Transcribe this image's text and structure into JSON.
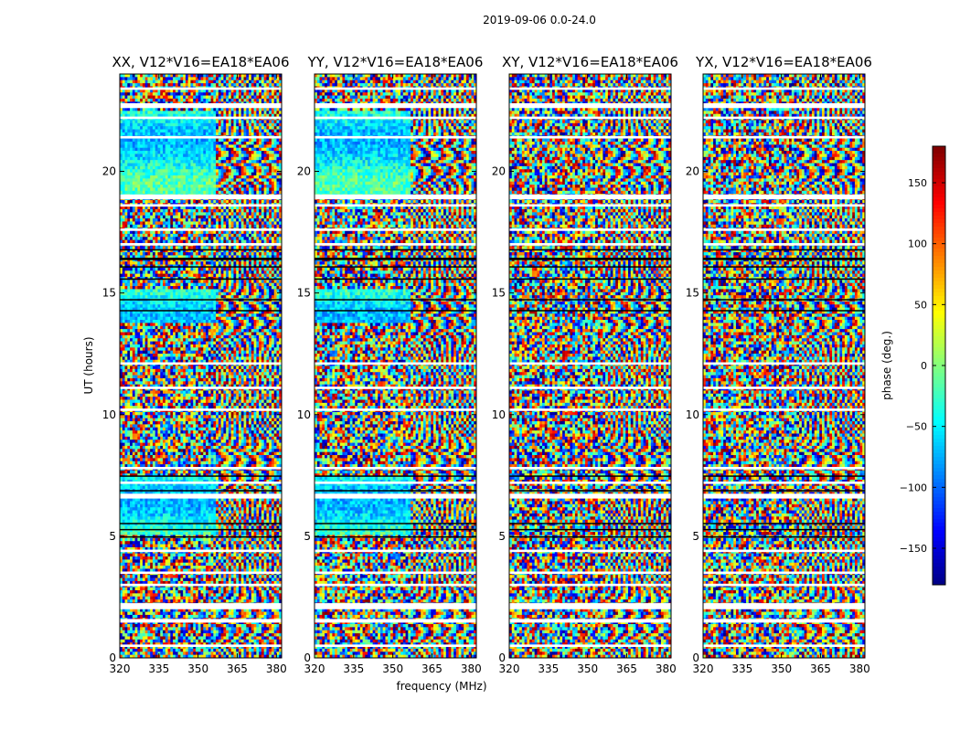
{
  "figure": {
    "suptitle": "2019-09-06 0.0-24.0",
    "xlabel": "frequency (MHz)",
    "ylabel": "UT (hours)",
    "colorbar_label": "phase (deg.)"
  },
  "chart_data": {
    "type": "heatmap",
    "title": "2019-09-06 0.0-24.0",
    "xlabel": "frequency (MHz)",
    "ylabel": "UT (hours)",
    "xlim": [
      320,
      382
    ],
    "ylim": [
      0,
      24
    ],
    "xticks": [
      320,
      335,
      350,
      365,
      380
    ],
    "yticks": [
      0,
      5,
      10,
      15,
      20
    ],
    "colorbar": {
      "label": "phase (deg.)",
      "range": [
        -180,
        180
      ],
      "ticks": [
        -150,
        -100,
        -50,
        0,
        50,
        100,
        150
      ],
      "tick_labels": [
        "−150",
        "−100",
        "−50",
        "0",
        "50",
        "100",
        "150"
      ],
      "colormap": "jet"
    },
    "panels": [
      {
        "title": "XX, V12*V16=EA18*EA06",
        "pol": "XX",
        "coherent": true
      },
      {
        "title": "YY, V12*V16=EA18*EA06",
        "pol": "YY",
        "coherent": true
      },
      {
        "title": "XY, V12*V16=EA18*EA06",
        "pol": "XY",
        "coherent": false
      },
      {
        "title": "YX, V12*V16=EA18*EA06",
        "pol": "YX",
        "coherent": false
      }
    ],
    "flagged_white_hours": [
      [
        0.45,
        0.55
      ],
      [
        1.45,
        1.6
      ],
      [
        2.0,
        2.25
      ],
      [
        2.95,
        3.05
      ],
      [
        3.45,
        3.55
      ],
      [
        4.35,
        4.45
      ],
      [
        6.55,
        6.75
      ],
      [
        7.15,
        7.25
      ],
      [
        7.75,
        7.85
      ],
      [
        10.15,
        10.25
      ],
      [
        11.05,
        11.15
      ],
      [
        12.05,
        12.15
      ],
      [
        16.95,
        17.05
      ],
      [
        17.55,
        17.65
      ],
      [
        18.55,
        18.65
      ],
      [
        18.85,
        19.05
      ],
      [
        21.35,
        21.45
      ],
      [
        22.15,
        22.25
      ],
      [
        22.6,
        22.8
      ],
      [
        23.35,
        23.45
      ]
    ],
    "flagged_black_hours": [
      [
        4.95,
        5.0
      ],
      [
        5.25,
        5.3
      ],
      [
        5.5,
        5.55
      ],
      [
        6.85,
        6.9
      ],
      [
        7.45,
        7.5
      ],
      [
        14.25,
        14.3
      ],
      [
        14.7,
        14.75
      ],
      [
        15.55,
        15.6
      ],
      [
        16.05,
        16.1
      ],
      [
        16.35,
        16.45
      ],
      [
        16.75,
        16.8
      ]
    ]
  }
}
